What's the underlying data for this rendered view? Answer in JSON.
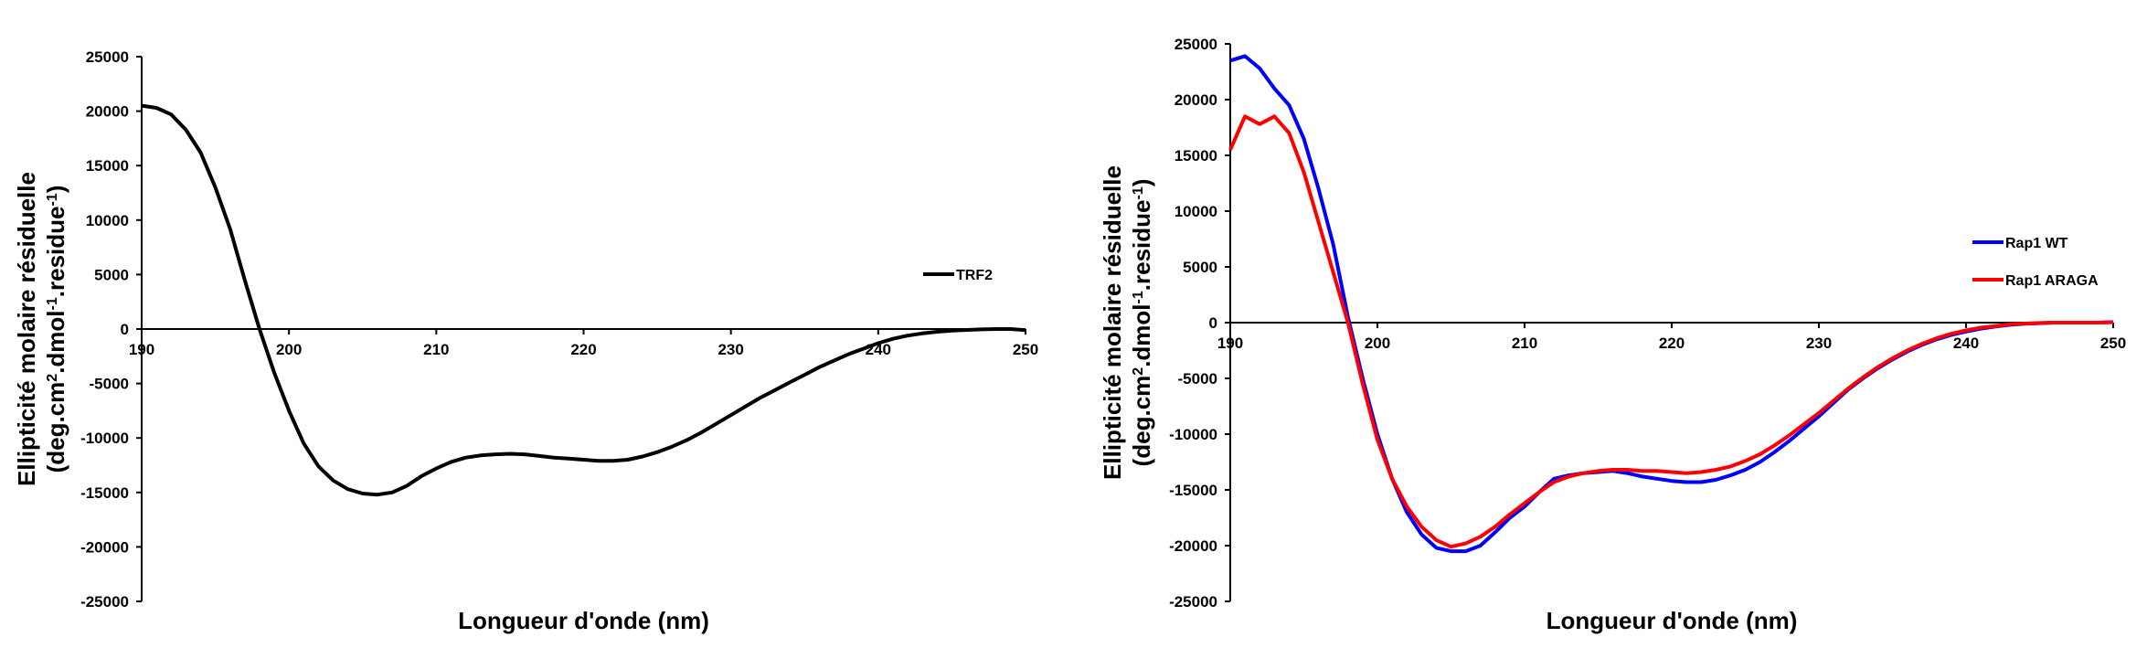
{
  "chart_data": [
    {
      "type": "line",
      "xlabel": "Longueur d'onde (nm)",
      "ylabel_line1": "Ellipticité molaire résiduelle",
      "ylabel_line2": "(deg.cm².dmol⁻¹.residue⁻¹)",
      "xlim": [
        190,
        250
      ],
      "ylim": [
        -25000,
        25000
      ],
      "x_ticks": [
        190,
        200,
        210,
        220,
        230,
        240,
        250
      ],
      "y_ticks": [
        -25000,
        -20000,
        -15000,
        -10000,
        -5000,
        0,
        5000,
        10000,
        15000,
        20000,
        25000
      ],
      "legend_position": "right",
      "series": [
        {
          "name": "TRF2",
          "color": "#000000",
          "points": [
            [
              190,
              20500
            ],
            [
              191,
              20300
            ],
            [
              192,
              19700
            ],
            [
              193,
              18300
            ],
            [
              194,
              16200
            ],
            [
              195,
              13000
            ],
            [
              196,
              9200
            ],
            [
              197,
              4500
            ],
            [
              198,
              0
            ],
            [
              199,
              -4000
            ],
            [
              200,
              -7500
            ],
            [
              201,
              -10500
            ],
            [
              202,
              -12600
            ],
            [
              203,
              -13900
            ],
            [
              204,
              -14700
            ],
            [
              205,
              -15100
            ],
            [
              206,
              -15200
            ],
            [
              207,
              -15000
            ],
            [
              208,
              -14400
            ],
            [
              209,
              -13500
            ],
            [
              210,
              -12800
            ],
            [
              211,
              -12200
            ],
            [
              212,
              -11800
            ],
            [
              213,
              -11600
            ],
            [
              214,
              -11500
            ],
            [
              215,
              -11450
            ],
            [
              216,
              -11500
            ],
            [
              217,
              -11650
            ],
            [
              218,
              -11800
            ],
            [
              219,
              -11900
            ],
            [
              220,
              -12000
            ],
            [
              221,
              -12100
            ],
            [
              222,
              -12100
            ],
            [
              223,
              -12000
            ],
            [
              224,
              -11700
            ],
            [
              225,
              -11300
            ],
            [
              226,
              -10800
            ],
            [
              227,
              -10200
            ],
            [
              228,
              -9500
            ],
            [
              229,
              -8700
            ],
            [
              230,
              -7900
            ],
            [
              231,
              -7100
            ],
            [
              232,
              -6300
            ],
            [
              233,
              -5600
            ],
            [
              234,
              -4900
            ],
            [
              235,
              -4200
            ],
            [
              236,
              -3500
            ],
            [
              237,
              -2900
            ],
            [
              238,
              -2300
            ],
            [
              239,
              -1800
            ],
            [
              240,
              -1300
            ],
            [
              241,
              -900
            ],
            [
              242,
              -600
            ],
            [
              243,
              -400
            ],
            [
              244,
              -250
            ],
            [
              245,
              -150
            ],
            [
              246,
              -80
            ],
            [
              247,
              -30
            ],
            [
              248,
              0
            ],
            [
              249,
              0
            ],
            [
              250,
              -100
            ]
          ]
        }
      ]
    },
    {
      "type": "line",
      "xlabel": "Longueur d'onde (nm)",
      "ylabel_line1": "Ellipticité molaire résiduelle",
      "ylabel_line2": "(deg.cm².dmol⁻¹.residue⁻¹)",
      "xlim": [
        190,
        250
      ],
      "ylim": [
        -25000,
        25000
      ],
      "x_ticks": [
        190,
        200,
        210,
        220,
        230,
        240,
        250
      ],
      "y_ticks": [
        -25000,
        -20000,
        -15000,
        -10000,
        -5000,
        0,
        5000,
        10000,
        15000,
        20000,
        25000
      ],
      "legend_position": "right",
      "series": [
        {
          "name": "Rap1 WT",
          "color": "#0000ff",
          "points": [
            [
              190,
              23500
            ],
            [
              191,
              23900
            ],
            [
              192,
              22800
            ],
            [
              193,
              21000
            ],
            [
              194,
              19500
            ],
            [
              195,
              16500
            ],
            [
              196,
              12000
            ],
            [
              197,
              7000
            ],
            [
              198,
              500
            ],
            [
              199,
              -5000
            ],
            [
              200,
              -10000
            ],
            [
              201,
              -14000
            ],
            [
              202,
              -17000
            ],
            [
              203,
              -19000
            ],
            [
              204,
              -20200
            ],
            [
              205,
              -20500
            ],
            [
              206,
              -20500
            ],
            [
              207,
              -20000
            ],
            [
              208,
              -18800
            ],
            [
              209,
              -17500
            ],
            [
              210,
              -16500
            ],
            [
              211,
              -15200
            ],
            [
              212,
              -14000
            ],
            [
              213,
              -13700
            ],
            [
              214,
              -13500
            ],
            [
              215,
              -13400
            ],
            [
              216,
              -13300
            ],
            [
              217,
              -13500
            ],
            [
              218,
              -13800
            ],
            [
              219,
              -14000
            ],
            [
              220,
              -14200
            ],
            [
              221,
              -14300
            ],
            [
              222,
              -14300
            ],
            [
              223,
              -14100
            ],
            [
              224,
              -13700
            ],
            [
              225,
              -13200
            ],
            [
              226,
              -12500
            ],
            [
              227,
              -11600
            ],
            [
              228,
              -10600
            ],
            [
              229,
              -9500
            ],
            [
              230,
              -8400
            ],
            [
              231,
              -7200
            ],
            [
              232,
              -6000
            ],
            [
              233,
              -5000
            ],
            [
              234,
              -4100
            ],
            [
              235,
              -3300
            ],
            [
              236,
              -2600
            ],
            [
              237,
              -2000
            ],
            [
              238,
              -1500
            ],
            [
              239,
              -1100
            ],
            [
              240,
              -800
            ],
            [
              241,
              -550
            ],
            [
              242,
              -350
            ],
            [
              243,
              -200
            ],
            [
              244,
              -100
            ],
            [
              245,
              -50
            ],
            [
              246,
              0
            ],
            [
              247,
              0
            ],
            [
              248,
              0
            ],
            [
              249,
              0
            ],
            [
              250,
              50
            ]
          ]
        },
        {
          "name": "Rap1 ARAGA",
          "color": "#ff0000",
          "points": [
            [
              190,
              15500
            ],
            [
              191,
              18500
            ],
            [
              192,
              17800
            ],
            [
              193,
              18500
            ],
            [
              194,
              17000
            ],
            [
              195,
              13500
            ],
            [
              196,
              9000
            ],
            [
              197,
              4500
            ],
            [
              198,
              0
            ],
            [
              199,
              -5500
            ],
            [
              200,
              -10500
            ],
            [
              201,
              -14000
            ],
            [
              202,
              -16500
            ],
            [
              203,
              -18300
            ],
            [
              204,
              -19500
            ],
            [
              205,
              -20100
            ],
            [
              206,
              -19800
            ],
            [
              207,
              -19200
            ],
            [
              208,
              -18300
            ],
            [
              209,
              -17200
            ],
            [
              210,
              -16200
            ],
            [
              211,
              -15200
            ],
            [
              212,
              -14300
            ],
            [
              213,
              -13800
            ],
            [
              214,
              -13500
            ],
            [
              215,
              -13300
            ],
            [
              216,
              -13200
            ],
            [
              217,
              -13200
            ],
            [
              218,
              -13300
            ],
            [
              219,
              -13300
            ],
            [
              220,
              -13400
            ],
            [
              221,
              -13500
            ],
            [
              222,
              -13400
            ],
            [
              223,
              -13200
            ],
            [
              224,
              -12900
            ],
            [
              225,
              -12400
            ],
            [
              226,
              -11800
            ],
            [
              227,
              -11000
            ],
            [
              228,
              -10100
            ],
            [
              229,
              -9100
            ],
            [
              230,
              -8100
            ],
            [
              231,
              -7000
            ],
            [
              232,
              -5900
            ],
            [
              233,
              -4900
            ],
            [
              234,
              -4000
            ],
            [
              235,
              -3200
            ],
            [
              236,
              -2500
            ],
            [
              237,
              -1900
            ],
            [
              238,
              -1400
            ],
            [
              239,
              -1000
            ],
            [
              240,
              -700
            ],
            [
              241,
              -450
            ],
            [
              242,
              -300
            ],
            [
              243,
              -150
            ],
            [
              244,
              -80
            ],
            [
              245,
              -30
            ],
            [
              246,
              0
            ],
            [
              247,
              0
            ],
            [
              248,
              0
            ],
            [
              249,
              0
            ],
            [
              250,
              30
            ]
          ]
        }
      ]
    }
  ]
}
